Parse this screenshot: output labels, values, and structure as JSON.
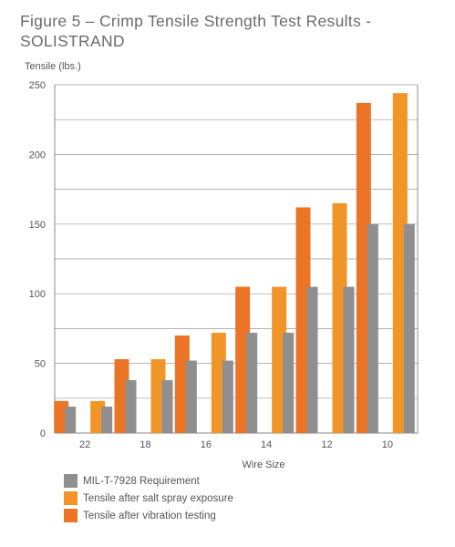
{
  "title": "Figure 5 – Crimp Tensile Strength Test Results - SOLISTRAND",
  "chart_data": {
    "type": "bar",
    "ylabel": "Tensile (lbs.)",
    "xlabel": "Wire Size",
    "ylim": [
      0,
      250
    ],
    "yticks": [
      "0",
      "50",
      "100",
      "150",
      "200",
      "250"
    ],
    "grid": true,
    "legend_position": "bottom-left",
    "categories": [
      "22",
      "18",
      "16",
      "14",
      "12",
      "10"
    ],
    "series": [
      {
        "name": "Tensile after vibration testing",
        "color": "#ec7427",
        "values": [
          23,
          53,
          70,
          105,
          162,
          237
        ]
      },
      {
        "name": "Tensile after salt spray exposure",
        "color": "#f29528",
        "values": [
          23,
          53,
          72,
          105,
          165,
          244
        ]
      },
      {
        "name": "MIL-T-7928 Requirement",
        "color": "#8f8f8f",
        "values": [
          19,
          38,
          52,
          72,
          105,
          150
        ]
      }
    ],
    "bar_pattern": [
      [
        "Tensile after vibration testing",
        "MIL-T-7928 Requirement"
      ],
      [
        "Tensile after salt spray exposure",
        "MIL-T-7928 Requirement"
      ]
    ],
    "legend_order": [
      "MIL-T-7928 Requirement",
      "Tensile after salt spray exposure",
      "Tensile after vibration testing"
    ]
  }
}
